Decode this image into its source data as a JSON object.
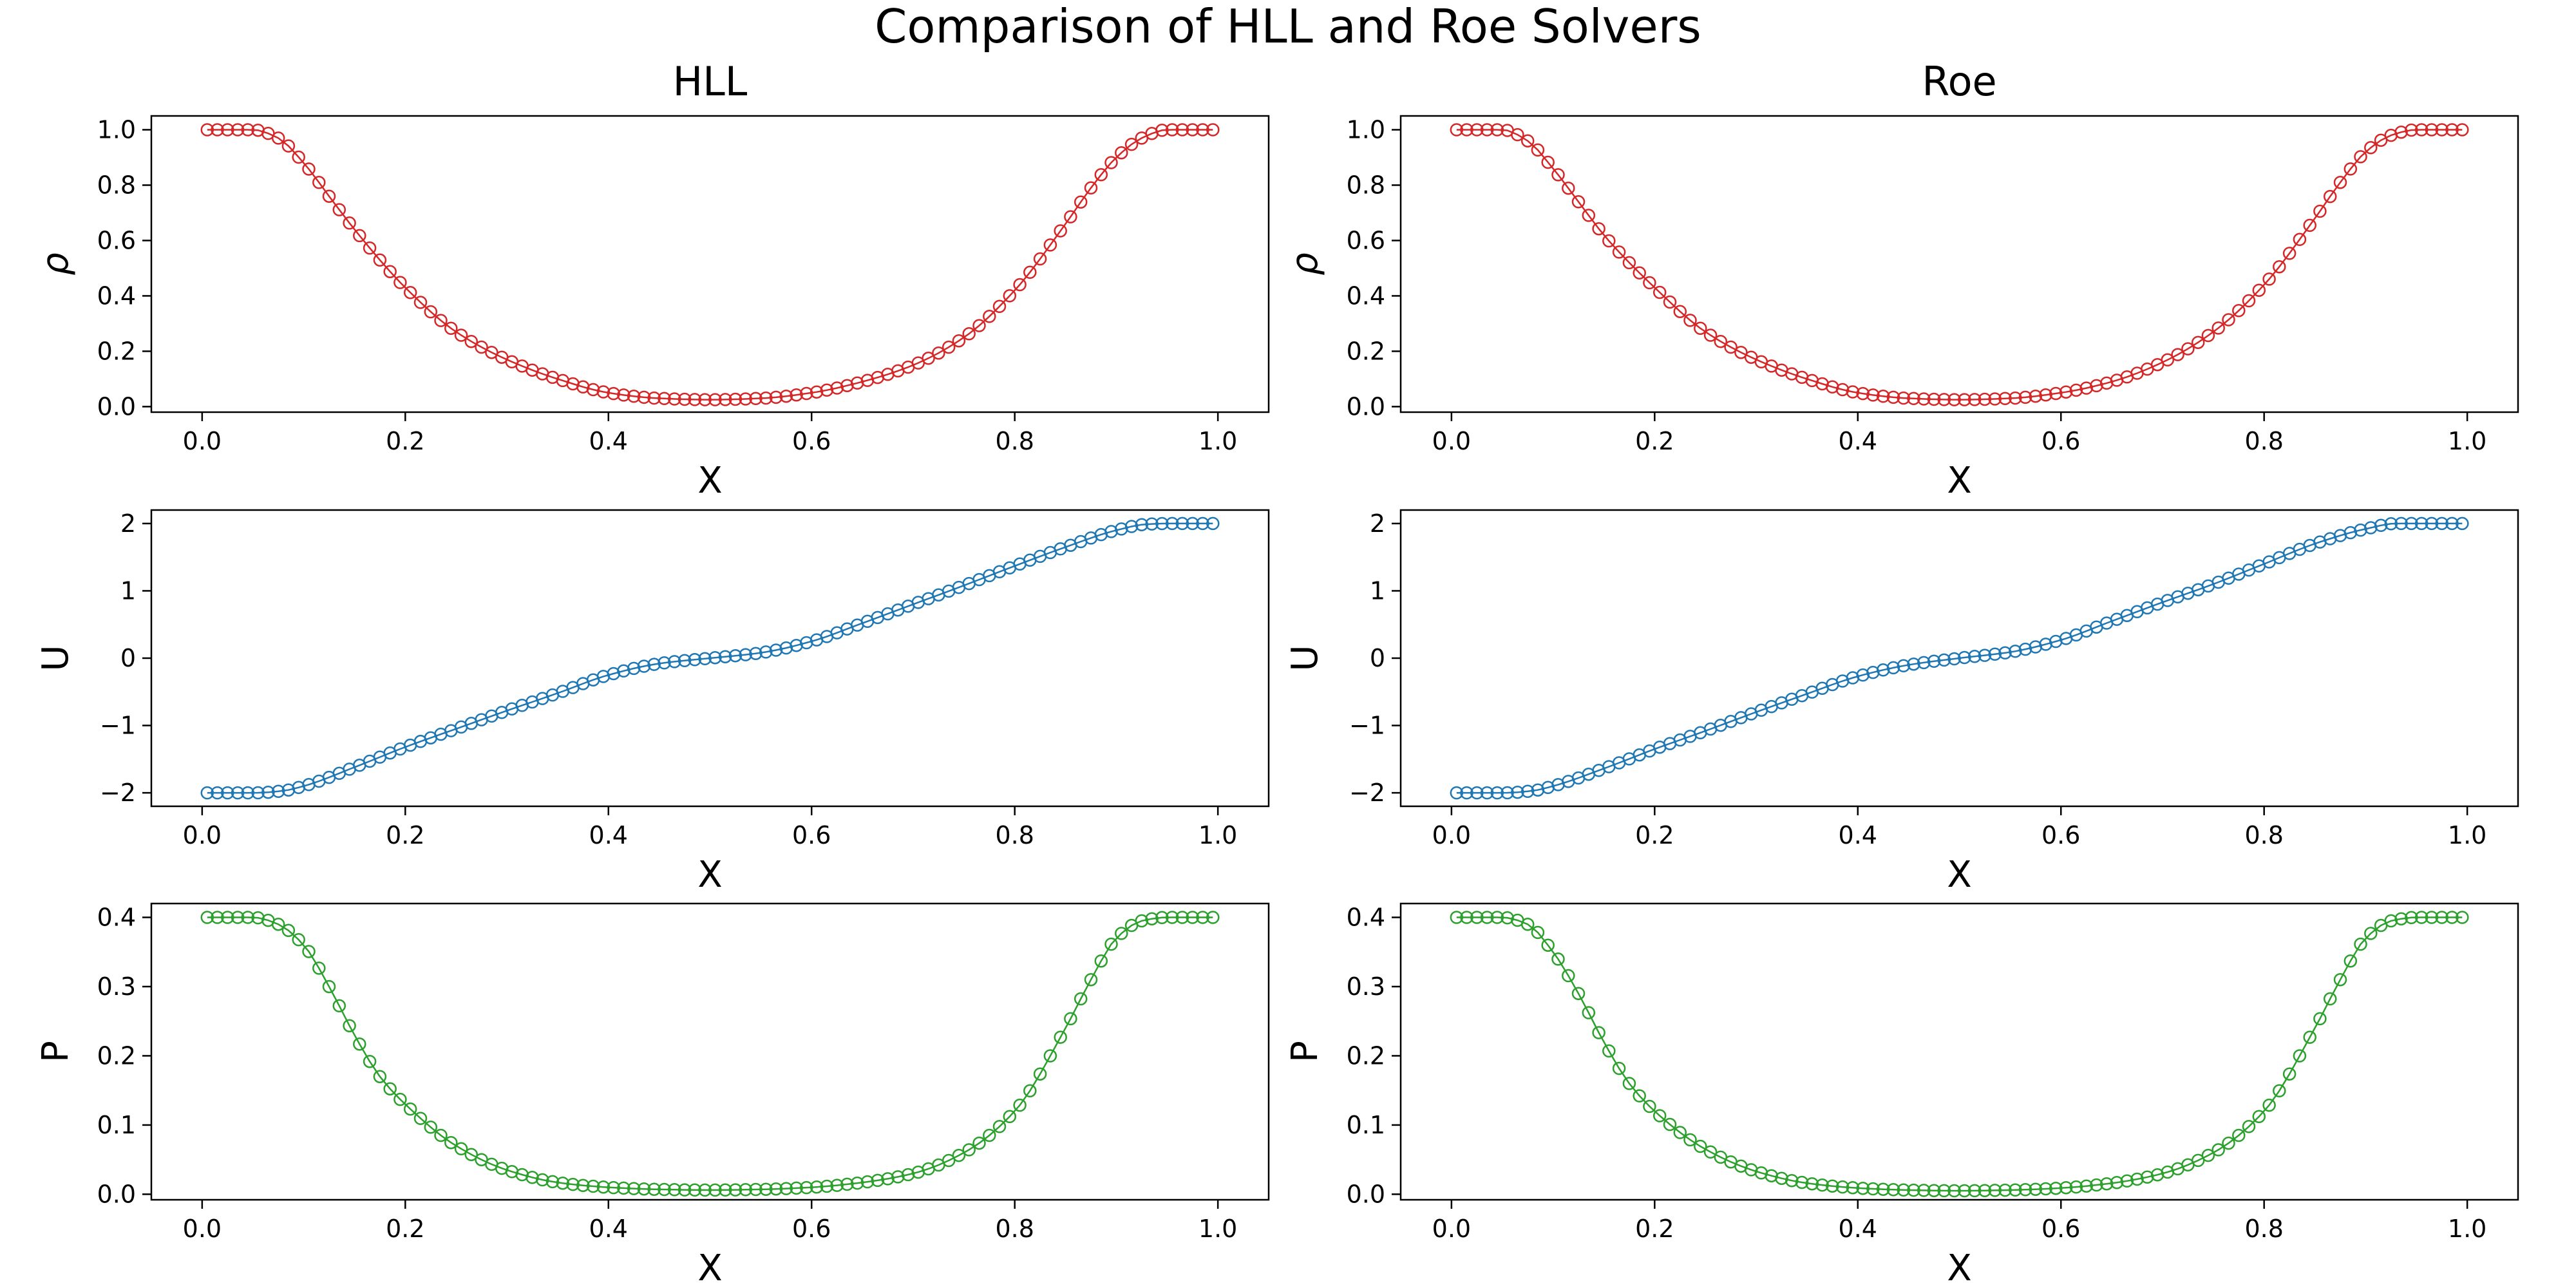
{
  "figure": {
    "title": "Comparison of HLL and Roe Solvers",
    "columns": [
      "HLL",
      "Roe"
    ]
  },
  "chart_data": [
    {
      "id": "hll-rho",
      "type": "scatter",
      "title": "HLL",
      "xlabel": "X",
      "ylabel": "ρ",
      "ylabel_style": "italic",
      "xlim": [
        -0.05,
        1.05
      ],
      "ylim": [
        -0.02,
        1.05
      ],
      "xticks": [
        0.0,
        0.2,
        0.4,
        0.6,
        0.8,
        1.0
      ],
      "xtick_labels": [
        "0.0",
        "0.2",
        "0.4",
        "0.6",
        "0.8",
        "1.0"
      ],
      "yticks": [
        0.0,
        0.2,
        0.4,
        0.6,
        0.8,
        1.0
      ],
      "ytick_labels": [
        "0.0",
        "0.2",
        "0.4",
        "0.6",
        "0.8",
        "1.0"
      ],
      "grid": false,
      "marker": "open-circle",
      "color": "#d62728",
      "series": [
        {
          "x": [
            0.005,
            0.05,
            0.075,
            0.1,
            0.125,
            0.15,
            0.2,
            0.25,
            0.3,
            0.35,
            0.4,
            0.45,
            0.5,
            0.55,
            0.6,
            0.65,
            0.7,
            0.75,
            0.8,
            0.85,
            0.875,
            0.9,
            0.925,
            0.95,
            0.995
          ],
          "y": [
            1.0,
            1.0,
            0.97,
            0.88,
            0.76,
            0.64,
            0.43,
            0.27,
            0.17,
            0.1,
            0.05,
            0.03,
            0.025,
            0.03,
            0.05,
            0.09,
            0.15,
            0.25,
            0.42,
            0.66,
            0.79,
            0.9,
            0.97,
            1.0,
            1.0
          ]
        }
      ]
    },
    {
      "id": "roe-rho",
      "type": "scatter",
      "title": "Roe",
      "xlabel": "X",
      "ylabel": "ρ",
      "ylabel_style": "italic",
      "xlim": [
        -0.05,
        1.05
      ],
      "ylim": [
        -0.02,
        1.05
      ],
      "xticks": [
        0.0,
        0.2,
        0.4,
        0.6,
        0.8,
        1.0
      ],
      "xtick_labels": [
        "0.0",
        "0.2",
        "0.4",
        "0.6",
        "0.8",
        "1.0"
      ],
      "yticks": [
        0.0,
        0.2,
        0.4,
        0.6,
        0.8,
        1.0
      ],
      "ytick_labels": [
        "0.0",
        "0.2",
        "0.4",
        "0.6",
        "0.8",
        "1.0"
      ],
      "grid": false,
      "marker": "open-circle",
      "color": "#d62728",
      "series": [
        {
          "x": [
            0.005,
            0.05,
            0.075,
            0.1,
            0.125,
            0.15,
            0.2,
            0.25,
            0.3,
            0.35,
            0.4,
            0.45,
            0.5,
            0.55,
            0.6,
            0.65,
            0.7,
            0.75,
            0.8,
            0.85,
            0.875,
            0.9,
            0.925,
            0.95,
            0.995
          ],
          "y": [
            1.0,
            1.0,
            0.96,
            0.86,
            0.74,
            0.62,
            0.43,
            0.27,
            0.17,
            0.1,
            0.05,
            0.03,
            0.025,
            0.03,
            0.05,
            0.09,
            0.16,
            0.27,
            0.44,
            0.68,
            0.81,
            0.92,
            0.98,
            1.0,
            1.0
          ]
        }
      ]
    },
    {
      "id": "hll-u",
      "type": "scatter",
      "title": "",
      "xlabel": "X",
      "ylabel": "U",
      "xlim": [
        -0.05,
        1.05
      ],
      "ylim": [
        -2.2,
        2.2
      ],
      "xticks": [
        0.0,
        0.2,
        0.4,
        0.6,
        0.8,
        1.0
      ],
      "xtick_labels": [
        "0.0",
        "0.2",
        "0.4",
        "0.6",
        "0.8",
        "1.0"
      ],
      "yticks": [
        -2,
        -1,
        0,
        1,
        2
      ],
      "ytick_labels": [
        "−2",
        "−1",
        "0",
        "1",
        "2"
      ],
      "grid": false,
      "marker": "open-circle",
      "color": "#1f77b4",
      "series": [
        {
          "x": [
            0.005,
            0.05,
            0.08,
            0.1,
            0.15,
            0.2,
            0.25,
            0.3,
            0.35,
            0.4,
            0.45,
            0.5,
            0.55,
            0.6,
            0.65,
            0.7,
            0.75,
            0.8,
            0.85,
            0.9,
            0.93,
            0.95,
            0.995
          ],
          "y": [
            -2.0,
            -2.0,
            -1.97,
            -1.9,
            -1.62,
            -1.32,
            -1.05,
            -0.78,
            -0.52,
            -0.25,
            -0.08,
            0.0,
            0.08,
            0.25,
            0.52,
            0.8,
            1.08,
            1.37,
            1.65,
            1.9,
            1.99,
            2.0,
            2.0
          ]
        }
      ]
    },
    {
      "id": "roe-u",
      "type": "scatter",
      "title": "",
      "xlabel": "X",
      "ylabel": "U",
      "xlim": [
        -0.05,
        1.05
      ],
      "ylim": [
        -2.2,
        2.2
      ],
      "xticks": [
        0.0,
        0.2,
        0.4,
        0.6,
        0.8,
        1.0
      ],
      "xtick_labels": [
        "0.0",
        "0.2",
        "0.4",
        "0.6",
        "0.8",
        "1.0"
      ],
      "yticks": [
        -2,
        -1,
        0,
        1,
        2
      ],
      "ytick_labels": [
        "−2",
        "−1",
        "0",
        "1",
        "2"
      ],
      "grid": false,
      "marker": "open-circle",
      "color": "#1f77b4",
      "series": [
        {
          "x": [
            0.005,
            0.05,
            0.08,
            0.1,
            0.15,
            0.2,
            0.25,
            0.3,
            0.35,
            0.4,
            0.45,
            0.5,
            0.55,
            0.6,
            0.65,
            0.7,
            0.75,
            0.8,
            0.85,
            0.9,
            0.93,
            0.95,
            0.995
          ],
          "y": [
            -2.0,
            -2.0,
            -1.97,
            -1.9,
            -1.64,
            -1.35,
            -1.08,
            -0.8,
            -0.53,
            -0.27,
            -0.1,
            0.0,
            0.09,
            0.27,
            0.55,
            0.83,
            1.1,
            1.4,
            1.7,
            1.92,
            2.0,
            2.0,
            2.0
          ]
        }
      ]
    },
    {
      "id": "hll-p",
      "type": "scatter",
      "title": "",
      "xlabel": "X",
      "ylabel": "P",
      "xlim": [
        -0.05,
        1.05
      ],
      "ylim": [
        -0.008,
        0.42
      ],
      "xticks": [
        0.0,
        0.2,
        0.4,
        0.6,
        0.8,
        1.0
      ],
      "xtick_labels": [
        "0.0",
        "0.2",
        "0.4",
        "0.6",
        "0.8",
        "1.0"
      ],
      "yticks": [
        0.0,
        0.1,
        0.2,
        0.3,
        0.4
      ],
      "ytick_labels": [
        "0.0",
        "0.1",
        "0.2",
        "0.3",
        "0.4"
      ],
      "grid": false,
      "marker": "open-circle",
      "color": "#2ca02c",
      "series": [
        {
          "x": [
            0.005,
            0.05,
            0.075,
            0.1,
            0.125,
            0.15,
            0.175,
            0.2,
            0.25,
            0.3,
            0.35,
            0.4,
            0.45,
            0.5,
            0.55,
            0.6,
            0.65,
            0.7,
            0.75,
            0.8,
            0.85,
            0.875,
            0.9,
            0.925,
            0.95,
            0.995
          ],
          "y": [
            0.4,
            0.4,
            0.39,
            0.36,
            0.3,
            0.23,
            0.17,
            0.13,
            0.07,
            0.035,
            0.017,
            0.01,
            0.007,
            0.006,
            0.007,
            0.01,
            0.017,
            0.03,
            0.06,
            0.12,
            0.24,
            0.31,
            0.37,
            0.395,
            0.4,
            0.4
          ]
        }
      ]
    },
    {
      "id": "roe-p",
      "type": "scatter",
      "title": "",
      "xlabel": "X",
      "ylabel": "P",
      "xlim": [
        -0.05,
        1.05
      ],
      "ylim": [
        -0.008,
        0.42
      ],
      "xticks": [
        0.0,
        0.2,
        0.4,
        0.6,
        0.8,
        1.0
      ],
      "xtick_labels": [
        "0.0",
        "0.2",
        "0.4",
        "0.6",
        "0.8",
        "1.0"
      ],
      "yticks": [
        0.0,
        0.1,
        0.2,
        0.3,
        0.4
      ],
      "ytick_labels": [
        "0.0",
        "0.1",
        "0.2",
        "0.3",
        "0.4"
      ],
      "grid": false,
      "marker": "open-circle",
      "color": "#2ca02c",
      "series": [
        {
          "x": [
            0.005,
            0.05,
            0.075,
            0.1,
            0.125,
            0.15,
            0.175,
            0.2,
            0.25,
            0.3,
            0.35,
            0.4,
            0.45,
            0.5,
            0.55,
            0.6,
            0.65,
            0.7,
            0.75,
            0.8,
            0.85,
            0.875,
            0.9,
            0.925,
            0.95,
            0.995
          ],
          "y": [
            0.4,
            0.4,
            0.39,
            0.35,
            0.29,
            0.22,
            0.16,
            0.12,
            0.065,
            0.033,
            0.016,
            0.009,
            0.006,
            0.005,
            0.006,
            0.009,
            0.016,
            0.03,
            0.06,
            0.12,
            0.24,
            0.31,
            0.37,
            0.395,
            0.4,
            0.4
          ]
        }
      ]
    }
  ]
}
